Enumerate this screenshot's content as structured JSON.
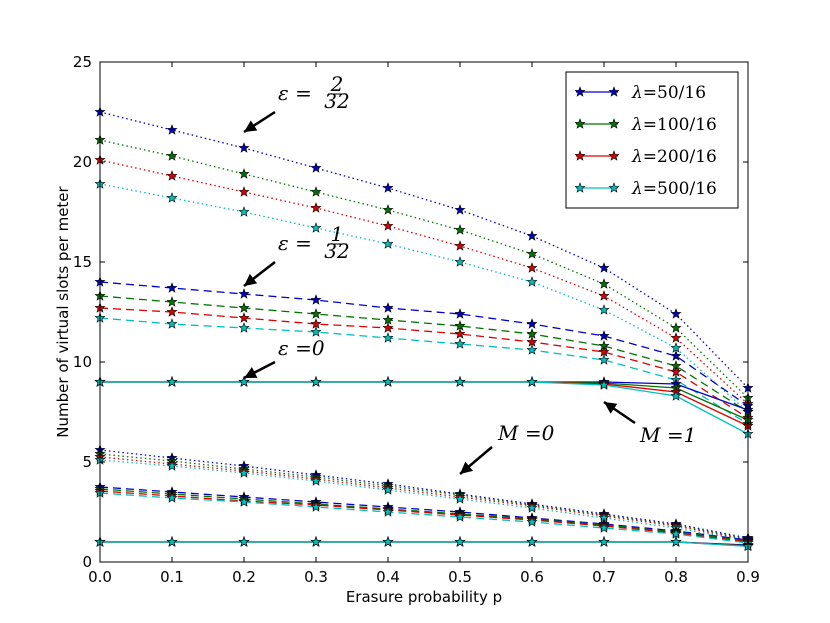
{
  "chart_data": {
    "type": "line",
    "xlabel": "Erasure probability p",
    "ylabel": "Number of virtual slots per meter",
    "xlim": [
      0,
      0.9
    ],
    "ylim": [
      0,
      25
    ],
    "xticks": [
      0.0,
      0.1,
      0.2,
      0.3,
      0.4,
      0.5,
      0.6,
      0.7,
      0.8,
      0.9
    ],
    "yticks": [
      0,
      5,
      10,
      15,
      20,
      25
    ],
    "xtick_labels": [
      "0.0",
      "0.1",
      "0.2",
      "0.3",
      "0.4",
      "0.5",
      "0.6",
      "0.7",
      "0.8",
      "0.9"
    ],
    "ytick_labels": [
      "0",
      "5",
      "10",
      "15",
      "20",
      "25"
    ],
    "x": [
      0.0,
      0.1,
      0.2,
      0.3,
      0.4,
      0.5,
      0.6,
      0.7,
      0.8,
      0.9
    ],
    "colors": {
      "lambda_50": "#0000cc",
      "lambda_100": "#007500",
      "lambda_200": "#dd0000",
      "lambda_500": "#00bfbf"
    },
    "legend": {
      "placement": "top-right",
      "entries": [
        {
          "prefix": "λ",
          "value": "=50/16",
          "color_key": "lambda_50"
        },
        {
          "prefix": "λ",
          "value": "=100/16",
          "color_key": "lambda_100"
        },
        {
          "prefix": "λ",
          "value": "=200/16",
          "color_key": "lambda_200"
        },
        {
          "prefix": "λ",
          "value": "=500/16",
          "color_key": "lambda_500"
        }
      ]
    },
    "annotations": [
      {
        "label": "ε = 2/32",
        "text_prefix": "ε =",
        "frac_num": "2",
        "frac_den": "32",
        "arrow_to": [
          0.2,
          21.5
        ]
      },
      {
        "label": "ε = 1/32",
        "text_prefix": "ε =",
        "frac_num": "1",
        "frac_den": "32",
        "arrow_to": [
          0.2,
          13.8
        ]
      },
      {
        "label": "ε = 0",
        "text": "ε =0",
        "arrow_to": [
          0.2,
          9.2
        ]
      },
      {
        "label": "M = 0",
        "text": "M =0",
        "arrow_to": [
          0.5,
          4.4
        ]
      },
      {
        "label": "M = 1",
        "text": "M =1",
        "arrow_to": [
          0.7,
          8.0
        ]
      }
    ],
    "series": [
      {
        "name": "eps2/32 lambda50/16",
        "color_key": "lambda_50",
        "style": "dotted",
        "values": [
          22.5,
          21.6,
          20.7,
          19.7,
          18.7,
          17.6,
          16.3,
          14.7,
          12.4,
          8.7
        ]
      },
      {
        "name": "eps2/32 lambda100/16",
        "color_key": "lambda_100",
        "style": "dotted",
        "values": [
          21.1,
          20.3,
          19.4,
          18.5,
          17.6,
          16.6,
          15.4,
          13.9,
          11.7,
          8.2
        ]
      },
      {
        "name": "eps2/32 lambda200/16",
        "color_key": "lambda_200",
        "style": "dotted",
        "values": [
          20.1,
          19.3,
          18.5,
          17.7,
          16.8,
          15.8,
          14.7,
          13.3,
          11.2,
          7.9
        ]
      },
      {
        "name": "eps2/32 lambda500/16",
        "color_key": "lambda_500",
        "style": "dotted",
        "values": [
          18.9,
          18.2,
          17.5,
          16.7,
          15.9,
          15.0,
          14.0,
          12.6,
          10.7,
          7.5
        ]
      },
      {
        "name": "eps1/32 lambda50/16",
        "color_key": "lambda_50",
        "style": "dashed",
        "values": [
          14.0,
          13.7,
          13.4,
          13.1,
          12.7,
          12.4,
          11.9,
          11.3,
          10.3,
          7.8
        ]
      },
      {
        "name": "eps1/32 lambda100/16",
        "color_key": "lambda_100",
        "style": "dashed",
        "values": [
          13.3,
          13.0,
          12.7,
          12.4,
          12.1,
          11.8,
          11.4,
          10.8,
          9.8,
          7.5
        ]
      },
      {
        "name": "eps1/32 lambda200/16",
        "color_key": "lambda_200",
        "style": "dashed",
        "values": [
          12.7,
          12.5,
          12.2,
          11.9,
          11.7,
          11.4,
          11.0,
          10.5,
          9.5,
          7.2
        ]
      },
      {
        "name": "eps1/32 lambda500/16",
        "color_key": "lambda_500",
        "style": "dashed",
        "values": [
          12.2,
          11.9,
          11.7,
          11.5,
          11.2,
          10.9,
          10.6,
          10.1,
          9.1,
          6.9
        ]
      },
      {
        "name": "eps0 lambda50/16",
        "color_key": "lambda_50",
        "style": "solid",
        "values": [
          9.0,
          9.0,
          9.0,
          9.0,
          9.0,
          9.0,
          9.0,
          9.0,
          8.9,
          7.6
        ]
      },
      {
        "name": "eps0 lambda100/16",
        "color_key": "lambda_100",
        "style": "solid",
        "values": [
          9.0,
          9.0,
          9.0,
          9.0,
          9.0,
          9.0,
          9.0,
          8.95,
          8.7,
          7.1
        ]
      },
      {
        "name": "eps0 lambda200/16",
        "color_key": "lambda_200",
        "style": "solid",
        "values": [
          9.0,
          9.0,
          9.0,
          9.0,
          9.0,
          9.0,
          9.0,
          8.9,
          8.5,
          6.8
        ]
      },
      {
        "name": "eps0 lambda500/16",
        "color_key": "lambda_500",
        "style": "solid",
        "values": [
          9.0,
          9.0,
          9.0,
          9.0,
          9.0,
          9.0,
          9.0,
          8.85,
          8.3,
          6.4
        ]
      },
      {
        "name": "M0 eps2/32 lambda50/16",
        "color_key": "lambda_50",
        "style": "dotted",
        "values": [
          5.6,
          5.2,
          4.8,
          4.35,
          3.9,
          3.4,
          2.9,
          2.4,
          1.9,
          1.2
        ]
      },
      {
        "name": "M0 eps2/32 lambda100/16",
        "color_key": "lambda_100",
        "style": "dotted",
        "values": [
          5.4,
          5.05,
          4.65,
          4.25,
          3.8,
          3.35,
          2.85,
          2.35,
          1.85,
          1.15
        ]
      },
      {
        "name": "M0 eps2/32 lambda200/16",
        "color_key": "lambda_200",
        "style": "dotted",
        "values": [
          5.25,
          4.9,
          4.55,
          4.15,
          3.7,
          3.25,
          2.8,
          2.3,
          1.8,
          1.1
        ]
      },
      {
        "name": "M0 eps2/32 lambda500/16",
        "color_key": "lambda_500",
        "style": "dotted",
        "values": [
          5.1,
          4.8,
          4.45,
          4.05,
          3.6,
          3.15,
          2.7,
          2.2,
          1.7,
          1.05
        ]
      },
      {
        "name": "M0 eps1/32 lambda50/16",
        "color_key": "lambda_50",
        "style": "dashed",
        "values": [
          3.75,
          3.5,
          3.25,
          3.0,
          2.75,
          2.5,
          2.2,
          1.9,
          1.55,
          1.1
        ]
      },
      {
        "name": "M0 eps1/32 lambda100/16",
        "color_key": "lambda_100",
        "style": "dashed",
        "values": [
          3.65,
          3.4,
          3.15,
          2.9,
          2.65,
          2.4,
          2.15,
          1.85,
          1.5,
          1.05
        ]
      },
      {
        "name": "M0 eps1/32 lambda200/16",
        "color_key": "lambda_200",
        "style": "dashed",
        "values": [
          3.55,
          3.3,
          3.05,
          2.85,
          2.6,
          2.35,
          2.1,
          1.8,
          1.45,
          1.0
        ]
      },
      {
        "name": "M0 eps1/32 lambda500/16",
        "color_key": "lambda_500",
        "style": "dashed",
        "values": [
          3.45,
          3.2,
          3.0,
          2.75,
          2.5,
          2.25,
          2.0,
          1.7,
          1.4,
          0.95
        ]
      },
      {
        "name": "M0 eps0 lambda50/16",
        "color_key": "lambda_50",
        "style": "solid",
        "values": [
          1.0,
          1.0,
          1.0,
          1.0,
          1.0,
          1.0,
          1.0,
          1.0,
          1.0,
          0.85
        ]
      },
      {
        "name": "M0 eps0 lambda100/16",
        "color_key": "lambda_100",
        "style": "solid",
        "values": [
          1.0,
          1.0,
          1.0,
          1.0,
          1.0,
          1.0,
          1.0,
          1.0,
          1.0,
          0.82
        ]
      },
      {
        "name": "M0 eps0 lambda200/16",
        "color_key": "lambda_200",
        "style": "solid",
        "values": [
          1.0,
          1.0,
          1.0,
          1.0,
          1.0,
          1.0,
          1.0,
          1.0,
          1.0,
          0.8
        ]
      },
      {
        "name": "M0 eps0 lambda500/16",
        "color_key": "lambda_500",
        "style": "solid",
        "values": [
          1.0,
          1.0,
          1.0,
          1.0,
          1.0,
          1.0,
          1.0,
          1.0,
          1.0,
          0.78
        ]
      }
    ]
  }
}
